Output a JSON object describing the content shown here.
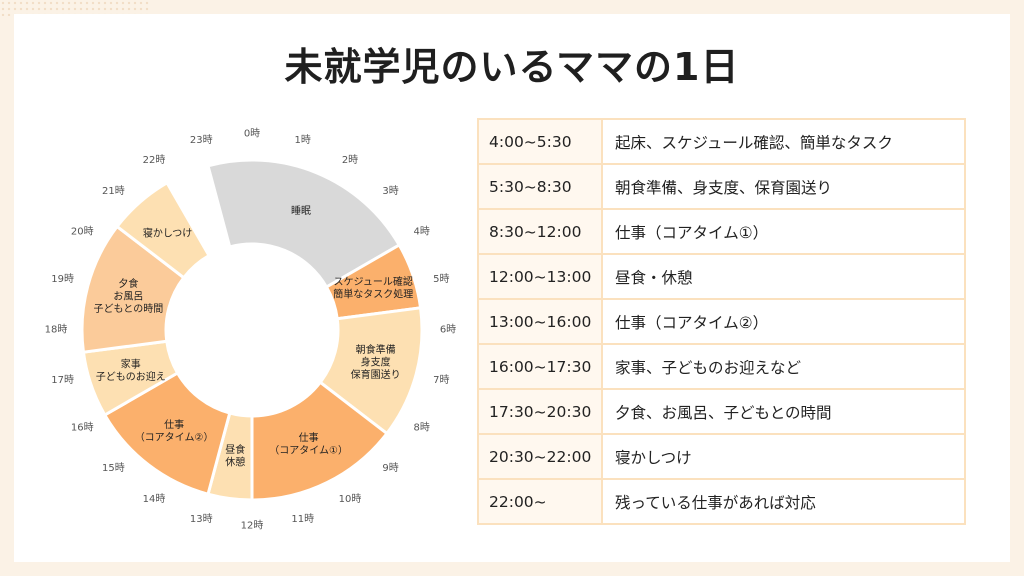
{
  "title": "未就学児のいるママの1日",
  "clock": {
    "hour_labels": [
      "0時",
      "1時",
      "2時",
      "3時",
      "4時",
      "5時",
      "6時",
      "7時",
      "8時",
      "9時",
      "10時",
      "11時",
      "12時",
      "13時",
      "14時",
      "15時",
      "16時",
      "17時",
      "18時",
      "19時",
      "20時",
      "21時",
      "22時",
      "23時"
    ]
  },
  "segments": [
    {
      "start": 23.0,
      "end": 4.0,
      "lines": [
        "睡眠"
      ],
      "color": "#d9d9d9"
    },
    {
      "start": 4.0,
      "end": 5.5,
      "lines": [
        "スケジュール確認",
        "簡単なタスク処理"
      ],
      "color": "#fbb06c"
    },
    {
      "start": 5.5,
      "end": 8.5,
      "lines": [
        "朝食準備",
        "身支度",
        "保育園送り"
      ],
      "color": "#fde0b2"
    },
    {
      "start": 8.5,
      "end": 12.0,
      "lines": [
        "仕事",
        "（コアタイム①）"
      ],
      "color": "#fbb06c"
    },
    {
      "start": 12.0,
      "end": 13.0,
      "lines": [
        "昼食",
        "休憩"
      ],
      "color": "#fde0b2"
    },
    {
      "start": 13.0,
      "end": 16.0,
      "lines": [
        "仕事",
        "（コアタイム②）"
      ],
      "color": "#fbb06c"
    },
    {
      "start": 16.0,
      "end": 17.5,
      "lines": [
        "家事",
        "子どものお迎え"
      ],
      "color": "#fde0b2"
    },
    {
      "start": 17.5,
      "end": 20.5,
      "lines": [
        "夕食",
        "お風呂",
        "子どもとの時間"
      ],
      "color": "#fbcb9a"
    },
    {
      "start": 20.5,
      "end": 22.0,
      "lines": [
        "寝かしつけ"
      ],
      "color": "#fde0b2"
    }
  ],
  "schedule": [
    {
      "time": "4:00~5:30",
      "activity": "起床、スケジュール確認、簡単なタスク"
    },
    {
      "time": "5:30~8:30",
      "activity": "朝食準備、身支度、保育園送り"
    },
    {
      "time": "8:30~12:00",
      "activity": "仕事（コアタイム①）"
    },
    {
      "time": "12:00~13:00",
      "activity": "昼食・休憩"
    },
    {
      "time": "13:00~16:00",
      "activity": "仕事（コアタイム②）"
    },
    {
      "time": "16:00~17:30",
      "activity": "家事、子どものお迎えなど"
    },
    {
      "time": "17:30~20:30",
      "activity": "夕食、お風呂、子どもとの時間"
    },
    {
      "time": "20:30~22:00",
      "activity": "寝かしつけ"
    },
    {
      "time": "22:00~",
      "activity": "残っている仕事があれば対応"
    }
  ]
}
